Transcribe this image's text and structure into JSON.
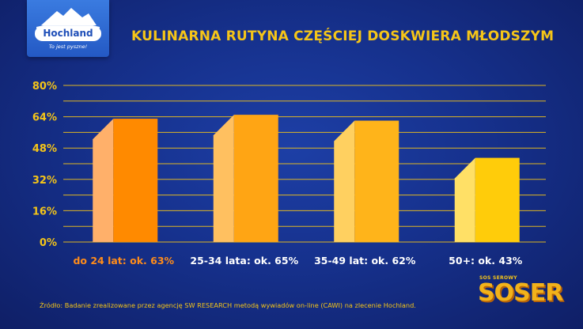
{
  "logo": {
    "brand": "Hochland",
    "slogan": "To jest pyszne!"
  },
  "title": "KULINARNA RUTYNA CZĘŚCIEJ DOSKWIERA MŁODSZYM",
  "chart_data": {
    "type": "bar",
    "title": "KULINARNA RUTYNA CZĘŚCIEJ DOSKWIERA MŁODSZYM",
    "categories": [
      "do 24 lat: ok. 63%",
      "25-34 lata: ok. 65%",
      "35-49 lat: ok. 62%",
      "50+: ok. 43%"
    ],
    "values": [
      63,
      65,
      62,
      43
    ],
    "ylim": [
      0,
      80
    ],
    "yticks": [
      "0%",
      "16%",
      "32%",
      "48%",
      "64%",
      "80%"
    ],
    "grid": true,
    "xlabel": "",
    "ylabel": "",
    "colors": {
      "bar_fronts": [
        "#ff8a00",
        "#ffa514",
        "#ffb41a",
        "#ffcc0a"
      ],
      "bar_sides": [
        "#ffb06a",
        "#ffc060",
        "#ffd060",
        "#ffe066"
      ],
      "labels": [
        "#ff8c1a",
        "#ffffff",
        "#ffffff",
        "#ffffff"
      ],
      "grid": "#f5c518"
    }
  },
  "source": "Źródło: Badanie zrealizowane przez agencję SW RESEARCH metodą wywiadów on-line (CAWI) na zlecenie Hochland.",
  "badge": {
    "small": "SOS SEROWY",
    "big": "SOSER"
  }
}
